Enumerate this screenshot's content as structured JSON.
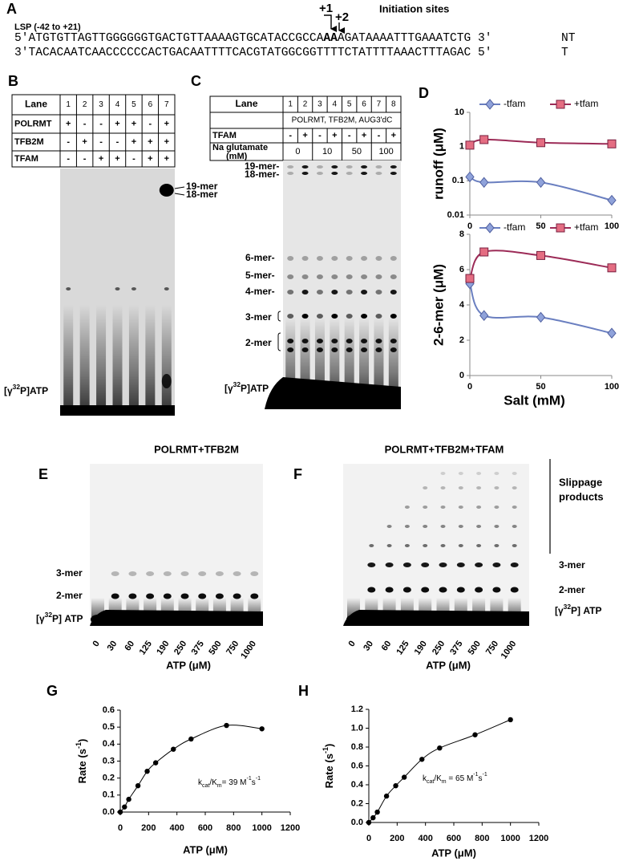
{
  "panel_labels": {
    "a": "A",
    "b": "B",
    "c": "C",
    "d": "D",
    "e": "E",
    "f": "F",
    "g": "G",
    "h": "H"
  },
  "panel_a": {
    "region": "LSP (-42 to +21)",
    "site1": "+1",
    "site2": "+2",
    "sites_label": "Initiation sites",
    "nt_strand": [
      "5'ATGTGTTAGTTGGGGGGTGACTGTTAAAAGTGCATACCGCCA",
      "AA",
      "AGATAAAATTTGAAATCTG 3'"
    ],
    "nt_label": "NT",
    "t_strand": "3'TACACAATCAACCCCCCACTGACAATTTTCACGTATGGCGGTTTTCTATTTTAAACTTTAGAC 5'",
    "t_label": "T"
  },
  "panel_b": {
    "table": {
      "header": [
        "Lane",
        "1",
        "2",
        "3",
        "4",
        "5",
        "6",
        "7"
      ],
      "rows": [
        [
          "POLRMT",
          "+",
          "-",
          "-",
          "+",
          "+",
          "-",
          "+"
        ],
        [
          "TFB2M",
          "-",
          "+",
          "-",
          "-",
          "+",
          "+",
          "+"
        ],
        [
          "TFAM",
          "-",
          "-",
          "+",
          "+",
          "-",
          "+",
          "+"
        ]
      ]
    },
    "band_labels": [
      "19-mer",
      "18-mer"
    ],
    "atp_label": [
      "[γ",
      "32",
      "P]ATP"
    ]
  },
  "panel_c": {
    "table": {
      "header": [
        "Lane",
        "1",
        "2",
        "3",
        "4",
        "5",
        "6",
        "7",
        "8"
      ],
      "components": "POLRMT, TFB2M, AUG3'dC",
      "tfam": [
        "TFAM",
        "-",
        "+",
        "-",
        "+",
        "-",
        "+",
        "-",
        "+"
      ],
      "salt_label": [
        "Na glutamate",
        "(mM)"
      ],
      "salt": [
        "0",
        "10",
        "50",
        "100"
      ]
    },
    "band_labels": [
      "19-mer-",
      "18-mer-",
      "6-mer-",
      "5-mer-",
      "4-mer-",
      "3-mer",
      "2-mer"
    ],
    "atp_label": [
      "[γ",
      "32",
      "P]ATP"
    ]
  },
  "panel_e": {
    "title": "POLRMT+TFB2M",
    "band_labels": [
      "3-mer",
      "2-mer"
    ],
    "atp_label": [
      "[γ",
      "32",
      "P] ATP"
    ],
    "lanes": [
      "0",
      "30",
      "60",
      "125",
      "190",
      "250",
      "375",
      "500",
      "750",
      "1000"
    ],
    "xlabel": "ATP (μM)"
  },
  "panel_f": {
    "title": "POLRMT+TFB2M+TFAM",
    "slippage": [
      "Slippage",
      "products"
    ],
    "band_labels": [
      "3-mer",
      "2-mer"
    ],
    "atp_label": [
      "[γ",
      "32",
      "P] ATP"
    ],
    "lanes": [
      "0",
      "30",
      "60",
      "125",
      "190",
      "250",
      "375",
      "500",
      "750",
      "1000"
    ],
    "xlabel": "ATP (μM)"
  },
  "chart_data": [
    {
      "type": "line",
      "log": true,
      "ylabel": "runoff (μM)",
      "x": [
        0,
        10,
        50,
        100
      ],
      "xlim": [
        0,
        100
      ],
      "xticks": [
        0,
        50,
        100
      ],
      "ylim": [
        0.01,
        10
      ],
      "yticks": [
        0.01,
        0.1,
        1,
        10
      ],
      "legend": "top",
      "series": [
        {
          "name": "-tfam",
          "color": "#6a7fc0",
          "marker_color": "#8fa2da",
          "marker": "diamond",
          "values": [
            0.13,
            0.09,
            0.09,
            0.027
          ]
        },
        {
          "name": "+tfam",
          "color": "#9c2b57",
          "marker_color": "#e46d82",
          "marker": "square",
          "values": [
            1.1,
            1.6,
            1.3,
            1.2
          ]
        }
      ]
    },
    {
      "type": "line",
      "log": false,
      "ylabel": "2-6-mer (μM)",
      "xlabel": "Salt (mM)",
      "x": [
        0,
        10,
        50,
        100
      ],
      "xlim": [
        0,
        100
      ],
      "xticks": [
        0,
        50,
        100
      ],
      "ylim": [
        0,
        8
      ],
      "yticks": [
        0,
        2,
        4,
        6,
        8
      ],
      "legend": "top",
      "series": [
        {
          "name": "-tfam",
          "color": "#6a7fc0",
          "marker_color": "#8fa2da",
          "marker": "diamond",
          "values": [
            5.2,
            3.4,
            3.3,
            2.4
          ]
        },
        {
          "name": "+tfam",
          "color": "#9c2b57",
          "marker_color": "#e46d82",
          "marker": "square",
          "values": [
            5.5,
            7.0,
            6.8,
            6.1
          ]
        }
      ]
    },
    {
      "type": "scatter",
      "trend_line": true,
      "color": "#000000",
      "ylabel": [
        "Rate (s",
        "-1",
        ")"
      ],
      "xlabel": "ATP (μM)",
      "annotation": [
        "k",
        "cat",
        "/K",
        "m",
        "= 39 M",
        "-1",
        "s",
        "-1"
      ],
      "x": [
        0,
        30,
        60,
        125,
        190,
        250,
        375,
        500,
        750,
        1000
      ],
      "values": [
        0.0,
        0.03,
        0.075,
        0.155,
        0.24,
        0.29,
        0.37,
        0.43,
        0.51,
        0.49
      ],
      "xlim": [
        0,
        1200
      ],
      "xticks": [
        0,
        200,
        400,
        600,
        800,
        1000,
        1200
      ],
      "ylim": [
        0,
        0.6
      ],
      "yticks": [
        {
          "value": 0,
          "label": "0.0"
        },
        0.1,
        0.2,
        0.3,
        0.4,
        0.5,
        0.6
      ]
    },
    {
      "type": "scatter",
      "trend_line": true,
      "color": "#000000",
      "ylabel": [
        "Rate (s",
        "-1",
        ")"
      ],
      "xlabel": "ATP (μM)",
      "annotation": [
        "k",
        "cat",
        "/K",
        "m",
        " = 65 M",
        "-1",
        "s",
        "-1"
      ],
      "x": [
        0,
        30,
        60,
        125,
        190,
        250,
        375,
        500,
        750,
        1000
      ],
      "values": [
        0.0,
        0.05,
        0.11,
        0.28,
        0.39,
        0.48,
        0.67,
        0.79,
        0.93,
        1.09
      ],
      "xlim": [
        0,
        1200
      ],
      "xticks": [
        0,
        200,
        400,
        600,
        800,
        1000,
        1200
      ],
      "ylim": [
        0,
        1.2
      ],
      "yticks": [
        {
          "value": 0,
          "label": "0.0"
        },
        0.2,
        0.4,
        0.6,
        0.8,
        {
          "value": 1,
          "label": "1.0"
        },
        1.2
      ]
    }
  ]
}
